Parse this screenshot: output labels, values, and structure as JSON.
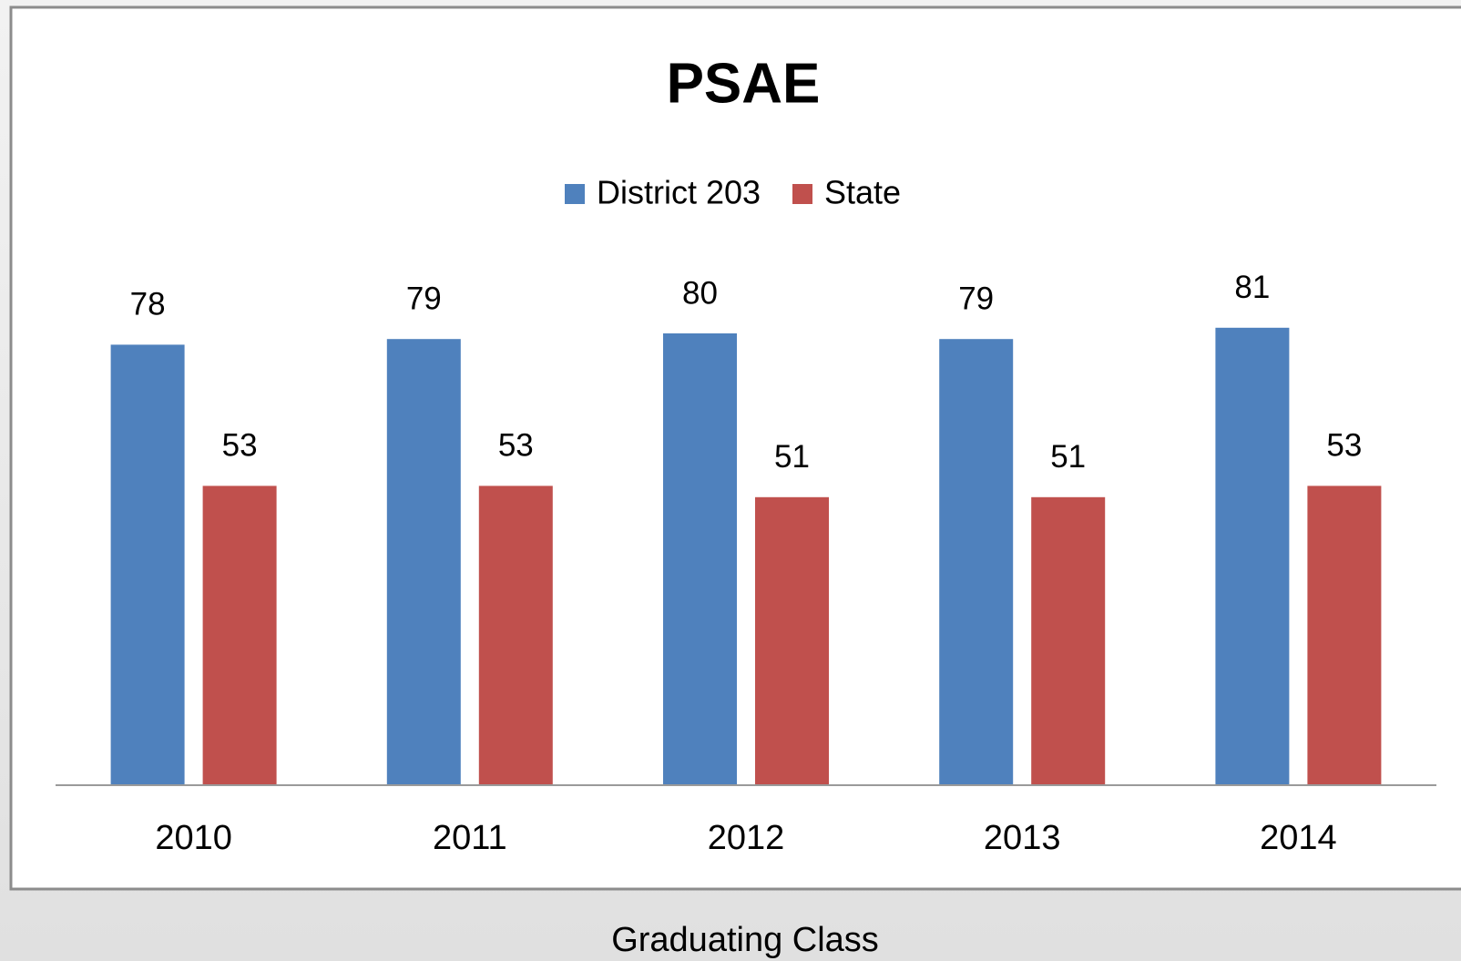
{
  "chart_data": {
    "type": "bar",
    "title": "PSAE",
    "x_label": "Graduating Class",
    "categories": [
      "2010",
      "2011",
      "2012",
      "2013",
      "2014"
    ],
    "series": [
      {
        "name": "District 203",
        "color": "#4f81bd",
        "values": [
          78,
          79,
          80,
          79,
          81
        ]
      },
      {
        "name": "State",
        "color": "#c0504d",
        "values": [
          53,
          53,
          51,
          51,
          53
        ]
      }
    ],
    "ylim": [
      0,
      100
    ],
    "legend": "top"
  }
}
